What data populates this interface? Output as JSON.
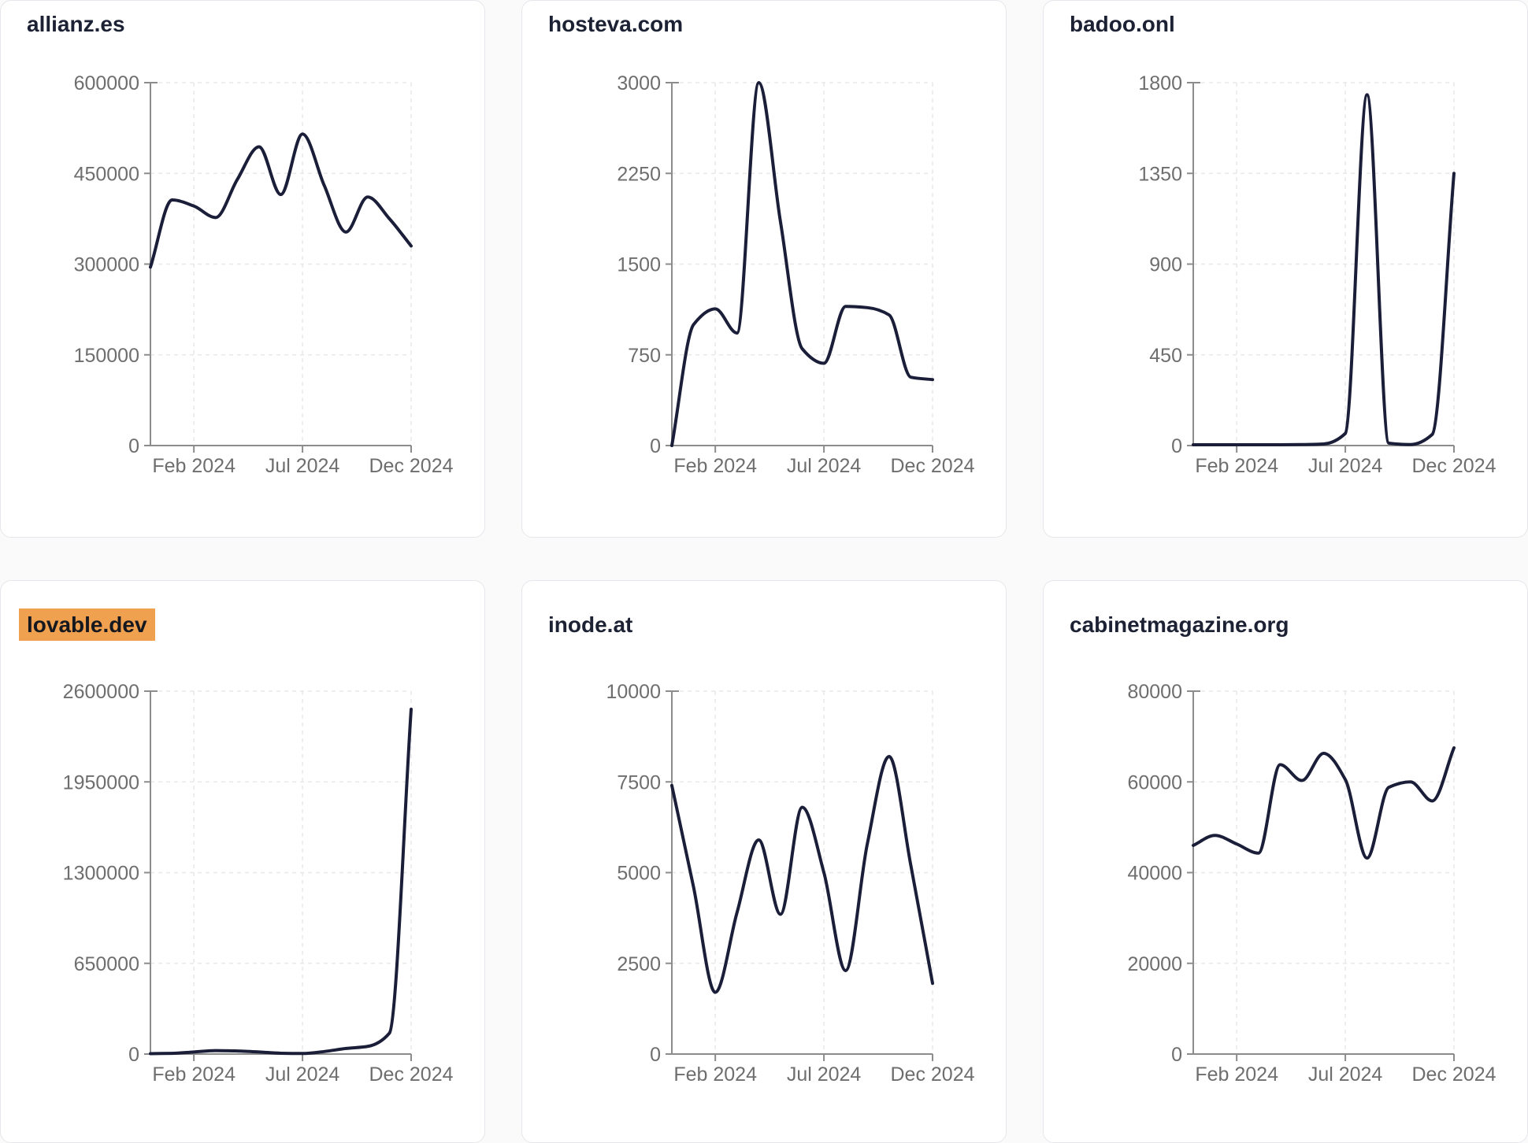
{
  "page_background": "#fafafa",
  "x_axis": {
    "labels": [
      "Feb 2024",
      "Jul 2024",
      "Dec 2024"
    ],
    "tick_indices": [
      2,
      7,
      12
    ]
  },
  "colors": {
    "line": "#1b1e38",
    "axis": "#8c8c8c",
    "tick_label": "#6e6e6e",
    "grid": "#e8e8e8",
    "title": "#1c2134",
    "highlight_bg": "#f0a150",
    "highlight_text": "#15181f",
    "card_bg": "#ffffff",
    "card_border": "#e6e6ec"
  },
  "chart_data": [
    {
      "type": "line",
      "title": "allianz.es",
      "highlighted": false,
      "ylim": [
        0,
        600000
      ],
      "y_ticks": [
        0,
        150000,
        300000,
        450000,
        600000
      ],
      "x": [
        "2024-01-01",
        "2024-01-31",
        "2024-02-29",
        "2024-03-31",
        "2024-04-30",
        "2024-05-31",
        "2024-06-30",
        "2024-07-31",
        "2024-08-31",
        "2024-09-30",
        "2024-10-31",
        "2024-11-30",
        "2024-12-31"
      ],
      "x_tick_labels": [
        "Feb 2024",
        "Jul 2024",
        "Dec 2024"
      ],
      "values": [
        295000,
        406000,
        396000,
        377000,
        440000,
        494000,
        415000,
        515000,
        430000,
        353000,
        411000,
        375000,
        330000
      ],
      "grid": true,
      "legend": false
    },
    {
      "type": "line",
      "title": "hosteva.com",
      "highlighted": false,
      "ylim": [
        0,
        3000
      ],
      "y_ticks": [
        0,
        750,
        1500,
        2250,
        3000
      ],
      "x": [
        "2024-01-01",
        "2024-01-31",
        "2024-02-29",
        "2024-03-31",
        "2024-04-30",
        "2024-05-31",
        "2024-06-30",
        "2024-07-31",
        "2024-08-31",
        "2024-09-30",
        "2024-10-31",
        "2024-11-30",
        "2024-12-31"
      ],
      "x_tick_labels": [
        "Feb 2024",
        "Jul 2024",
        "Dec 2024"
      ],
      "values": [
        0,
        1000,
        1130,
        930,
        3000,
        1850,
        800,
        680,
        1150,
        1140,
        1080,
        565,
        545
      ],
      "grid": true,
      "legend": false
    },
    {
      "type": "line",
      "title": "badoo.onl",
      "highlighted": false,
      "ylim": [
        0,
        1800
      ],
      "y_ticks": [
        0,
        450,
        900,
        1350,
        1800
      ],
      "x": [
        "2024-01-01",
        "2024-01-31",
        "2024-02-29",
        "2024-03-31",
        "2024-04-30",
        "2024-05-31",
        "2024-06-30",
        "2024-07-31",
        "2024-08-31",
        "2024-09-30",
        "2024-10-31",
        "2024-11-30",
        "2024-12-31"
      ],
      "x_tick_labels": [
        "Feb 2024",
        "Jul 2024",
        "Dec 2024"
      ],
      "values": [
        4,
        4,
        4,
        4,
        4,
        5,
        8,
        60,
        1740,
        12,
        5,
        55,
        1350
      ],
      "grid": true,
      "legend": false
    },
    {
      "type": "line",
      "title": "lovable.dev",
      "highlighted": true,
      "ylim": [
        0,
        2600000
      ],
      "y_ticks": [
        0,
        650000,
        1300000,
        1950000,
        2600000
      ],
      "x": [
        "2024-01-01",
        "2024-01-31",
        "2024-02-29",
        "2024-03-31",
        "2024-04-30",
        "2024-05-31",
        "2024-06-30",
        "2024-07-31",
        "2024-08-31",
        "2024-09-30",
        "2024-10-31",
        "2024-11-30",
        "2024-12-31"
      ],
      "x_tick_labels": [
        "Feb 2024",
        "Jul 2024",
        "Dec 2024"
      ],
      "values": [
        3000,
        5000,
        15000,
        25000,
        22000,
        15000,
        6000,
        4000,
        18000,
        40000,
        55000,
        150000,
        2470000
      ],
      "grid": true,
      "legend": false
    },
    {
      "type": "line",
      "title": "inode.at",
      "highlighted": false,
      "ylim": [
        0,
        10000
      ],
      "y_ticks": [
        0,
        2500,
        5000,
        7500,
        10000
      ],
      "x": [
        "2024-01-01",
        "2024-01-31",
        "2024-02-29",
        "2024-03-31",
        "2024-04-30",
        "2024-05-31",
        "2024-06-30",
        "2024-07-31",
        "2024-08-31",
        "2024-09-30",
        "2024-10-31",
        "2024-11-30",
        "2024-12-31"
      ],
      "x_tick_labels": [
        "Feb 2024",
        "Jul 2024",
        "Dec 2024"
      ],
      "values": [
        7400,
        4600,
        1700,
        3900,
        5900,
        3850,
        6800,
        5000,
        2300,
        5800,
        8200,
        5200,
        1950
      ],
      "grid": true,
      "legend": false
    },
    {
      "type": "line",
      "title": "cabinetmagazine.org",
      "highlighted": false,
      "ylim": [
        0,
        80000
      ],
      "y_ticks": [
        0,
        20000,
        40000,
        60000,
        80000
      ],
      "x": [
        "2024-01-01",
        "2024-01-31",
        "2024-02-29",
        "2024-03-31",
        "2024-04-30",
        "2024-05-31",
        "2024-06-30",
        "2024-07-31",
        "2024-08-31",
        "2024-09-30",
        "2024-10-31",
        "2024-11-30",
        "2024-12-31"
      ],
      "x_tick_labels": [
        "Feb 2024",
        "Jul 2024",
        "Dec 2024"
      ],
      "values": [
        46000,
        48200,
        46300,
        44300,
        63800,
        60300,
        66300,
        60500,
        43200,
        58800,
        60000,
        55800,
        67500
      ],
      "grid": true,
      "legend": false
    }
  ]
}
